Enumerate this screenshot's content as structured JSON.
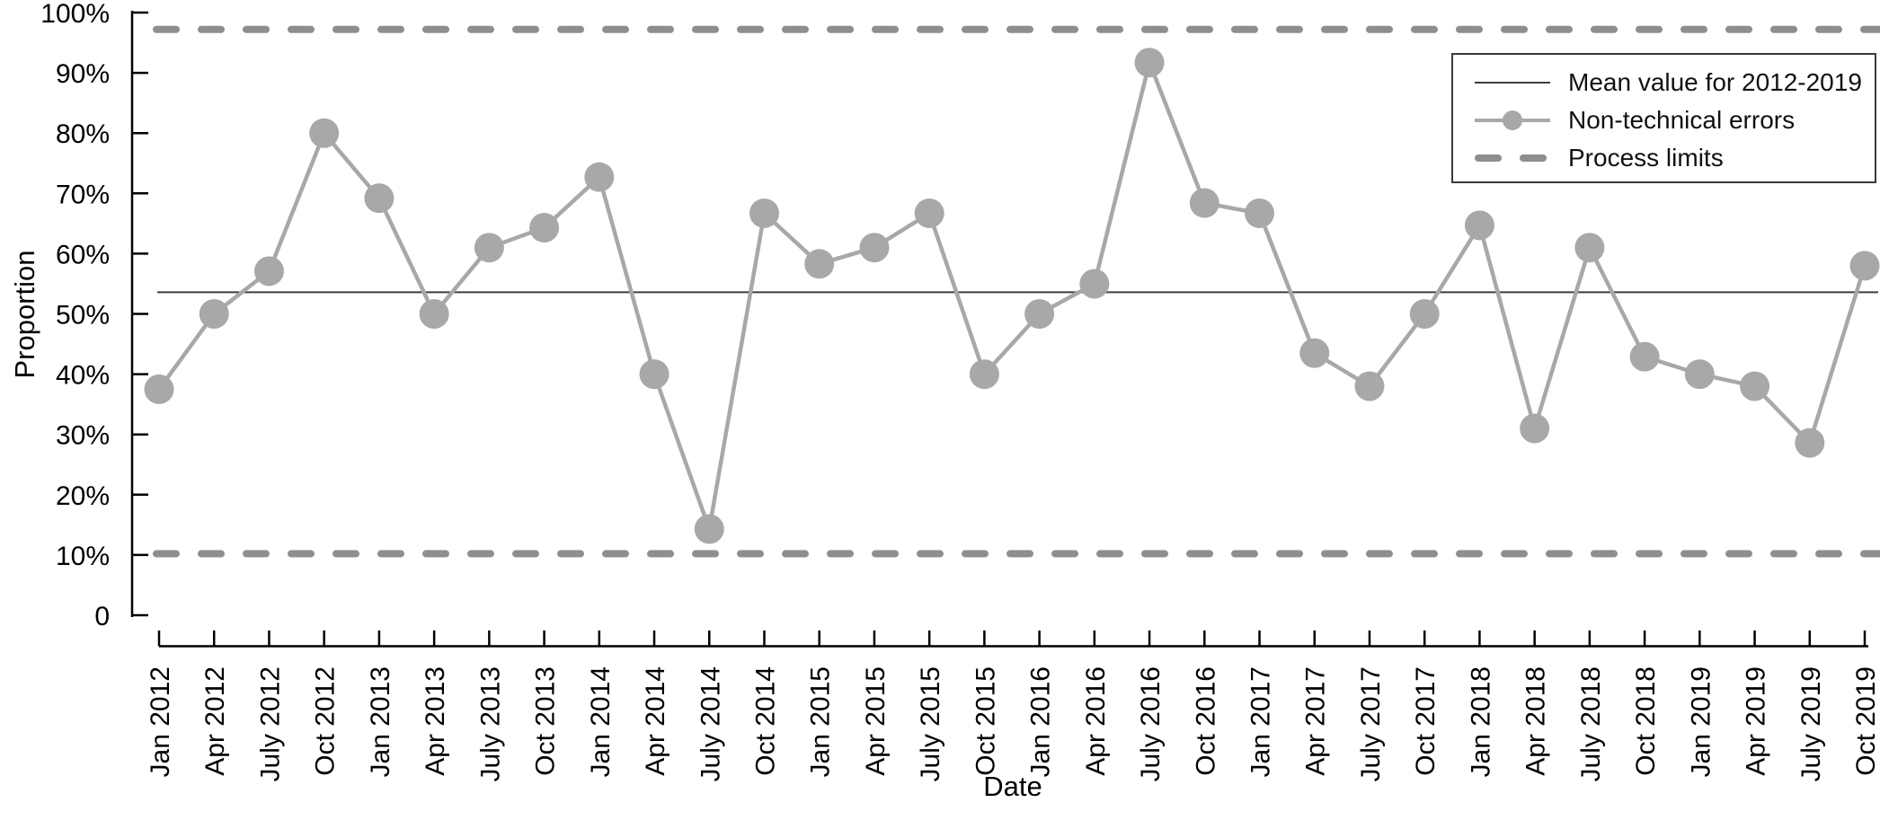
{
  "page": {
    "background": "#ffffff"
  },
  "chart_data": {
    "type": "line",
    "title": "",
    "xlabel": "Date",
    "ylabel": "Proportion",
    "categories": [
      "Jan 2012",
      "Apr 2012",
      "July 2012",
      "Oct 2012",
      "Jan 2013",
      "Apr 2013",
      "July 2013",
      "Oct 2013",
      "Jan 2014",
      "Apr 2014",
      "July 2014",
      "Oct 2014",
      "Jan 2015",
      "Apr 2015",
      "July 2015",
      "Oct 2015",
      "Jan 2016",
      "Apr 2016",
      "July 2016",
      "Oct 2016",
      "Jan 2017",
      "Apr 2017",
      "July 2017",
      "Oct 2017",
      "Jan 2018",
      "Apr 2018",
      "July 2018",
      "Oct 2018",
      "Jan 2019",
      "Apr 2019",
      "July 2019",
      "Oct 2019"
    ],
    "series": [
      {
        "name": "Non-technical errors",
        "color": "#a8a8a8",
        "values": [
          37.5,
          50,
          57.1,
          80,
          69.2,
          50,
          61,
          64.3,
          72.7,
          40,
          14.3,
          66.7,
          58.3,
          61,
          66.7,
          40,
          50,
          55,
          91.7,
          68.4,
          66.7,
          43.5,
          38,
          50,
          64.7,
          31,
          61,
          42.9,
          40,
          38,
          28.6,
          58
        ]
      }
    ],
    "mean_line": {
      "label": "Mean value for 2012-2019",
      "value": 53.6,
      "color": "#3d3d3d"
    },
    "process_limits": {
      "label": "Process limits",
      "upper": 97.2,
      "lower": 10.2,
      "color": "#8e8e8e"
    },
    "ylim": [
      0,
      100
    ],
    "y_tick_labels": [
      "0",
      "10%",
      "20%",
      "30%",
      "40%",
      "50%",
      "60%",
      "70%",
      "80%",
      "90%",
      "100%"
    ],
    "grid": false,
    "legend_position": "upper-right",
    "axis_color": "#000000"
  },
  "legend": {
    "entries": [
      {
        "label": "Mean value for 2012-2019"
      },
      {
        "label": "Non-technical errors"
      },
      {
        "label": "Process limits"
      }
    ]
  }
}
